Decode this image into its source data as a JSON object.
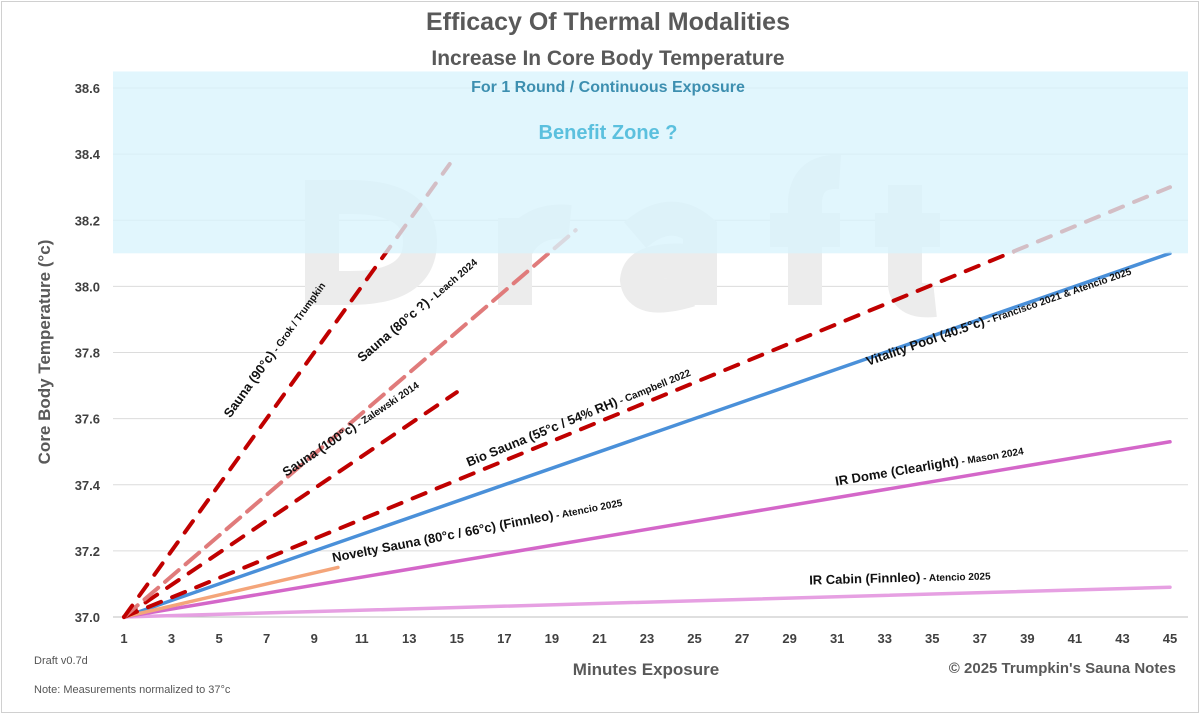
{
  "chart_data": {
    "type": "line",
    "title": "Efficacy Of Thermal Modalities",
    "subtitle": "Increase In Core Body Temperature",
    "zone_caption": "For 1 Round / Continuous Exposure",
    "zone_label": "Benefit Zone ?",
    "zone_range": [
      38.1,
      38.65
    ],
    "zone_color": "#d9f3fc",
    "watermark": "Draft",
    "xlabel": "Minutes Exposure",
    "ylabel": "Core Body Temperature (°c)",
    "xlim": [
      1,
      45
    ],
    "ylim": [
      37.0,
      38.6
    ],
    "xticks": [
      "1",
      "3",
      "5",
      "7",
      "9",
      "11",
      "13",
      "15",
      "17",
      "19",
      "21",
      "23",
      "25",
      "27",
      "29",
      "31",
      "33",
      "35",
      "37",
      "39",
      "41",
      "43",
      "45"
    ],
    "yticks": [
      "37.0",
      "37.2",
      "37.4",
      "37.6",
      "37.8",
      "38.0",
      "38.2",
      "38.4",
      "38.6"
    ],
    "grid": true,
    "series": [
      {
        "name": "Sauna (90°c)",
        "source": " - Grok / Trumpkin",
        "x": [
          1,
          14.7
        ],
        "y": [
          37.0,
          38.37
        ],
        "color": "#c00000",
        "dashed": true
      },
      {
        "name": "Sauna (80°c ?)",
        "source": " - Leach 2024",
        "x": [
          1,
          20
        ],
        "y": [
          37.0,
          38.17
        ],
        "color": "#e07b7b",
        "dashed": true,
        "label_color": "#a6a6a6"
      },
      {
        "name": "Sauna (100°c)",
        "source": " - Zalewski 2014",
        "x": [
          1,
          15
        ],
        "y": [
          37.0,
          37.68
        ],
        "color": "#c00000",
        "dashed": true
      },
      {
        "name": "Bio Sauna (55°c / 54% RH)",
        "source": " - Campbell 2022",
        "x": [
          1,
          45
        ],
        "y": [
          37.0,
          38.3
        ],
        "color": "#c00000",
        "dashed": true
      },
      {
        "name": "Vitality Pool (40.5°c)",
        "source": " - Francisco 2021 & Atencio 2025",
        "x": [
          1,
          45
        ],
        "y": [
          37.0,
          38.1
        ],
        "color": "#4a90d9",
        "dashed": false
      },
      {
        "name": "IR Dome (Clearlight)",
        "source": " - Mason 2024",
        "x": [
          1,
          45
        ],
        "y": [
          37.0,
          37.53
        ],
        "color": "#d467c9",
        "dashed": false
      },
      {
        "name": "IR Cabin (Finnleo)",
        "source": " - Atencio 2025",
        "x": [
          1,
          45
        ],
        "y": [
          37.0,
          37.09
        ],
        "color": "#e6a0e2",
        "dashed": false
      },
      {
        "name": "Novelty Sauna (80°c / 66°c) (Finnleo)",
        "source": " - Atencio 2025",
        "x": [
          1,
          10
        ],
        "y": [
          37.0,
          37.15
        ],
        "color": "#f4a57a",
        "dashed": false
      }
    ]
  },
  "footer": {
    "version": "Draft v0.7d",
    "note": "Note: Measurements normalized to 37°c",
    "copyright": "© 2025 Trumpkin's Sauna Notes"
  }
}
